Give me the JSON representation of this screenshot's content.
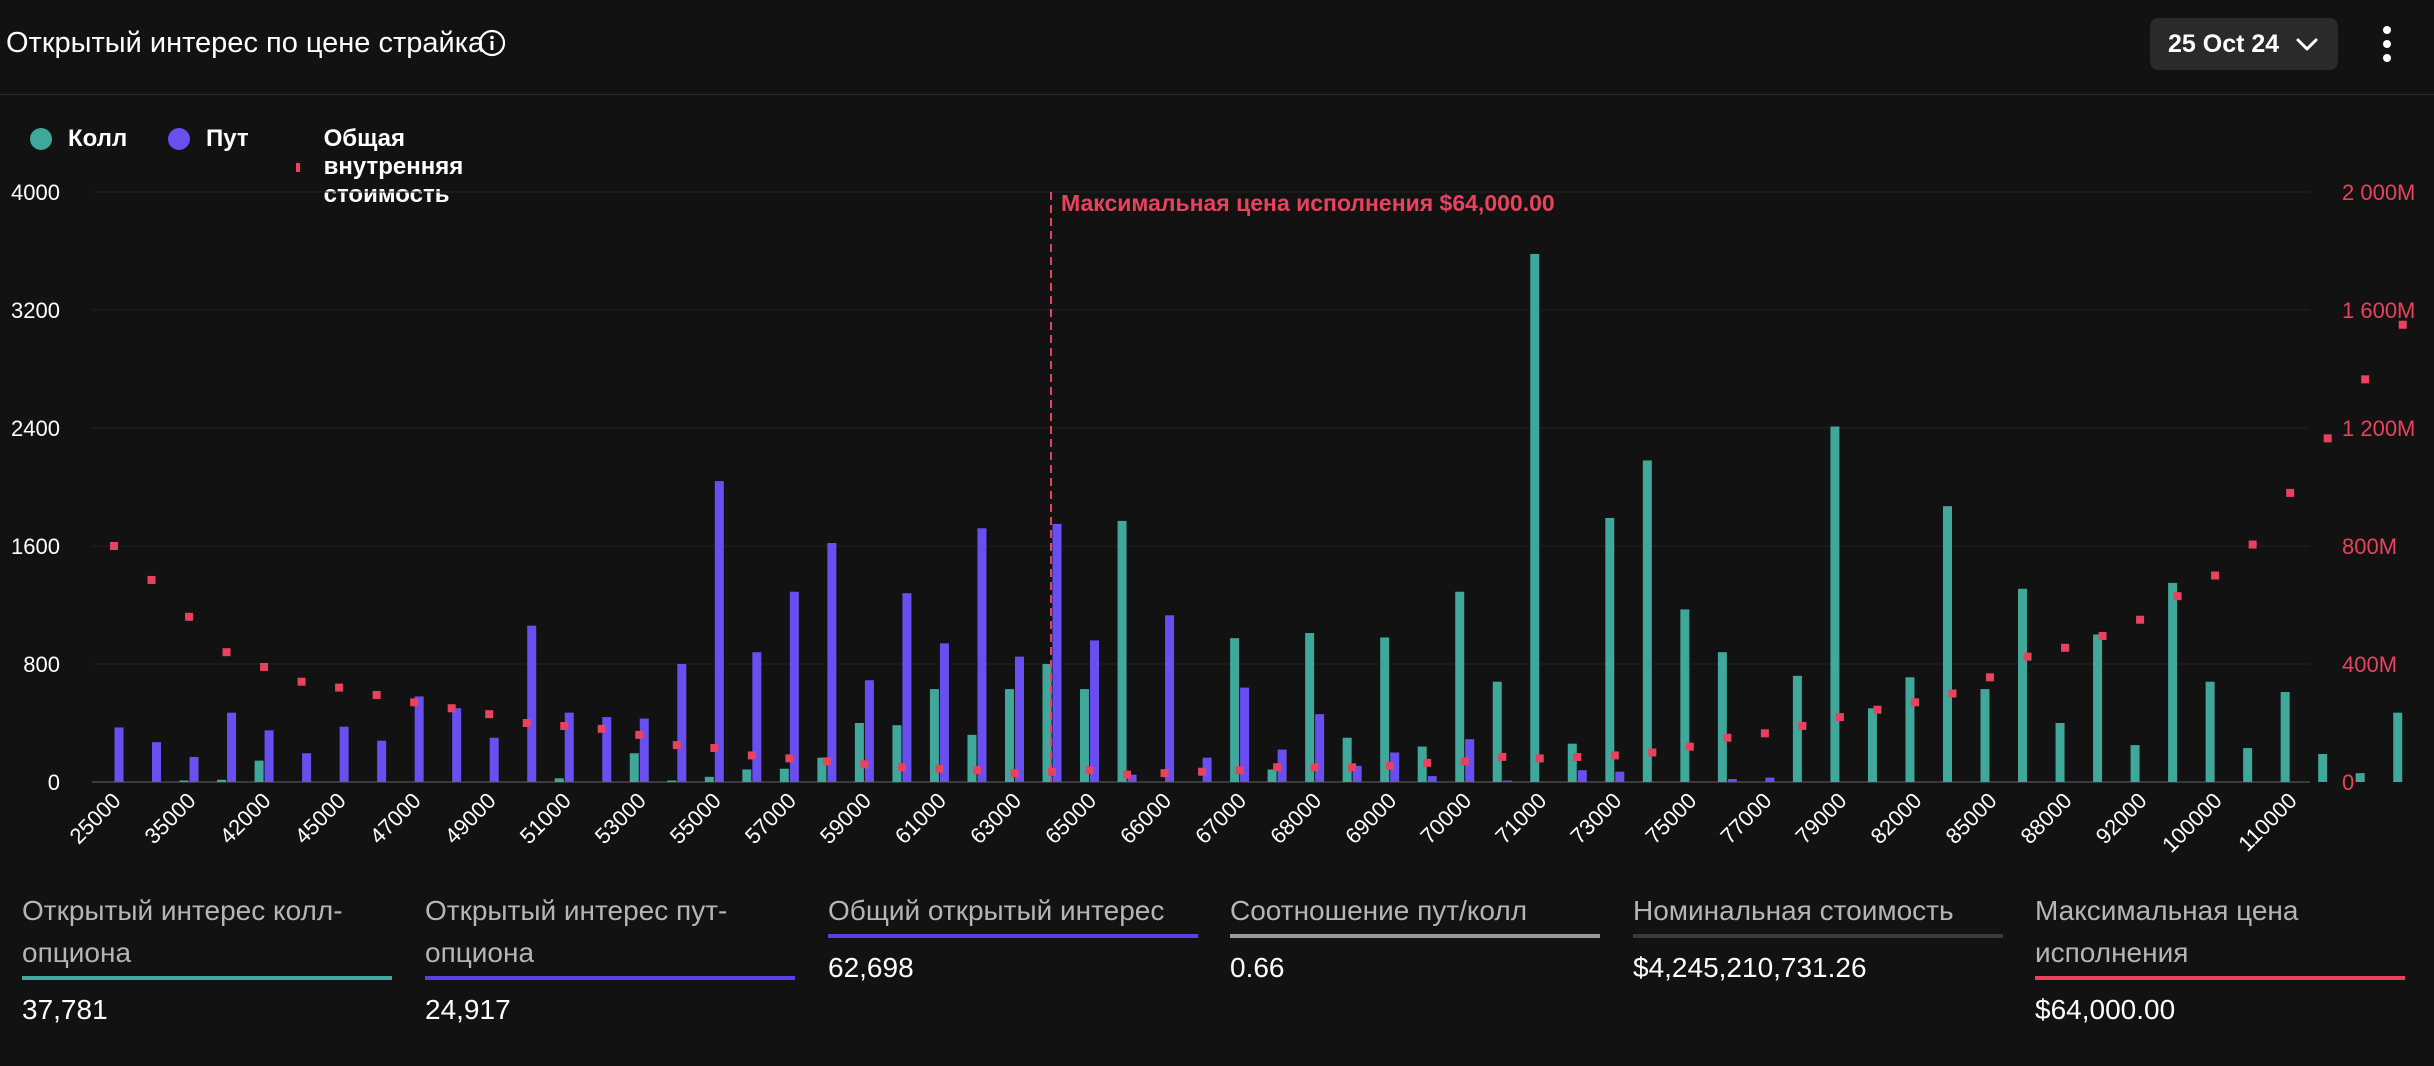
{
  "header": {
    "title": "Открытый интерес по цене страйка",
    "date": "25 Oct 24"
  },
  "legend": {
    "call": "Колл",
    "put": "Пут",
    "intrinsic": "Общая внутренняя стоимость"
  },
  "colors": {
    "call": "#3fa89a",
    "put": "#6a4ff0",
    "intrinsic": "#e8425e",
    "background": "#121212",
    "total_underline": "#5b3fe0",
    "ratio_underline": "#9a9a9a",
    "notional_underline": "#3a3a3a"
  },
  "chart_data": {
    "type": "bar",
    "annotation": "Максимальная цена исполнения $64,000.00",
    "max_pain_index": 25,
    "x_tick_labels": [
      "25000",
      "35000",
      "42000",
      "45000",
      "47000",
      "49000",
      "51000",
      "53000",
      "55000",
      "57000",
      "59000",
      "61000",
      "63000",
      "65000",
      "66000",
      "67000",
      "68000",
      "69000",
      "70000",
      "71000",
      "73000",
      "75000",
      "77000",
      "79000",
      "82000",
      "85000",
      "88000",
      "92000",
      "100000",
      "110000"
    ],
    "y_left": {
      "min": 0,
      "max": 4000,
      "ticks": [
        "0",
        "800",
        "1600",
        "2400",
        "3200",
        "4000"
      ]
    },
    "y_right": {
      "min": 0,
      "max": 2000,
      "unit": "M",
      "ticks": [
        "0",
        "400M",
        "800M",
        "1 200M",
        "1 600M",
        "2 000M"
      ]
    },
    "series": [
      {
        "name": "Колл",
        "values": [
          0,
          0,
          10,
          15,
          145,
          0,
          0,
          0,
          0,
          0,
          0,
          0,
          25,
          0,
          195,
          10,
          35,
          85,
          90,
          165,
          400,
          385,
          630,
          320,
          630,
          800,
          630,
          1770,
          0,
          0,
          975,
          85,
          1010,
          300,
          980,
          240,
          1290,
          680,
          3580,
          260,
          1790,
          2180,
          1170,
          880,
          0,
          720,
          2410,
          500,
          710,
          1870,
          630,
          1310,
          400,
          1000,
          250,
          1350,
          680,
          230,
          610,
          190,
          60,
          470
        ]
      },
      {
        "name": "Пут",
        "values": [
          370,
          270,
          170,
          470,
          350,
          195,
          375,
          280,
          580,
          500,
          300,
          1060,
          470,
          440,
          430,
          800,
          2040,
          880,
          1290,
          1620,
          690,
          1280,
          940,
          1720,
          850,
          1750,
          960,
          50,
          1130,
          165,
          640,
          220,
          460,
          110,
          200,
          40,
          290,
          10,
          0,
          80,
          70,
          0,
          0,
          20,
          30,
          0,
          0,
          0,
          0,
          0,
          0,
          0,
          0,
          0,
          0,
          0,
          0,
          0,
          0,
          0,
          0,
          0
        ]
      },
      {
        "name": "Общая внутренняя стоимость",
        "values": [
          800,
          685,
          560,
          440,
          390,
          340,
          320,
          295,
          270,
          250,
          230,
          200,
          190,
          180,
          160,
          125,
          115,
          90,
          80,
          70,
          60,
          50,
          45,
          40,
          30,
          35,
          40,
          25,
          30,
          35,
          40,
          50,
          50,
          50,
          55,
          65,
          70,
          85,
          80,
          85,
          90,
          100,
          120,
          150,
          165,
          190,
          220,
          245,
          270,
          300,
          355,
          425,
          455,
          495,
          550,
          630,
          700,
          805,
          980,
          1165,
          1365,
          1550
        ]
      }
    ]
  },
  "stats": [
    {
      "label": "Открытый интерес колл-опциона",
      "value": "37,781",
      "color": "#3fa89a"
    },
    {
      "label": "Открытый интерес пут-опциона",
      "value": "24,917",
      "color": "#5b3fe0"
    },
    {
      "label": "Общий открытый интерес",
      "value": "62,698",
      "color": "#5b3fe0"
    },
    {
      "label": "Соотношение пут/колл",
      "value": "0.66",
      "color": "#9a9a9a"
    },
    {
      "label": "Номинальная стоимость",
      "value": "$4,245,210,731.26",
      "color": "#3a3a3a"
    },
    {
      "label": "Максимальная цена исполнения",
      "value": "$64,000.00",
      "color": "#e8425e"
    }
  ]
}
